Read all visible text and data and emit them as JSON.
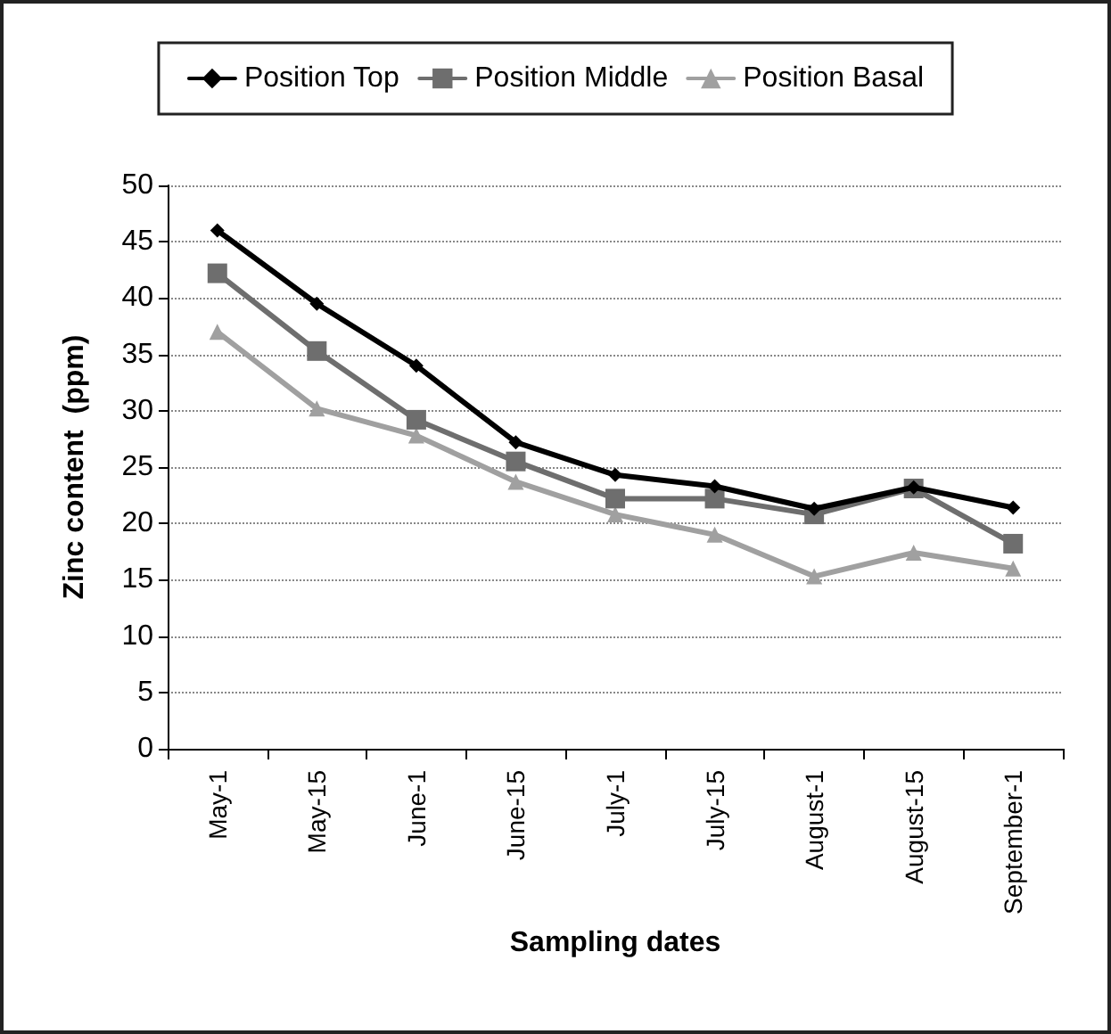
{
  "chart_data": {
    "type": "line",
    "xlabel": "Sampling dates",
    "ylabel": "Zinc content  (ppm)",
    "categories": [
      "May-1",
      "May-15",
      "June-1",
      "June-15",
      "July-1",
      "July-15",
      "August-1",
      "August-15",
      "September-1"
    ],
    "series": [
      {
        "name": "Position Top",
        "color": "#000000",
        "marker": "diamond",
        "values": [
          46,
          39.5,
          34,
          27.2,
          24.3,
          23.3,
          21.3,
          23.2,
          21.4
        ]
      },
      {
        "name": "Position Middle",
        "color": "#6e6e6e",
        "marker": "square",
        "values": [
          42.2,
          35.3,
          29.2,
          25.5,
          22.2,
          22.2,
          20.8,
          23.1,
          18.2
        ]
      },
      {
        "name": "Position Basal",
        "color": "#a0a0a0",
        "marker": "triangle",
        "values": [
          37,
          30.2,
          27.8,
          23.7,
          20.8,
          19,
          15.3,
          17.4,
          16
        ]
      }
    ],
    "ylim": [
      0,
      50
    ],
    "yticks": [
      0,
      5,
      10,
      15,
      20,
      25,
      30,
      35,
      40,
      45,
      50
    ],
    "grid": "y",
    "legend": "top",
    "line_style": "solid"
  }
}
